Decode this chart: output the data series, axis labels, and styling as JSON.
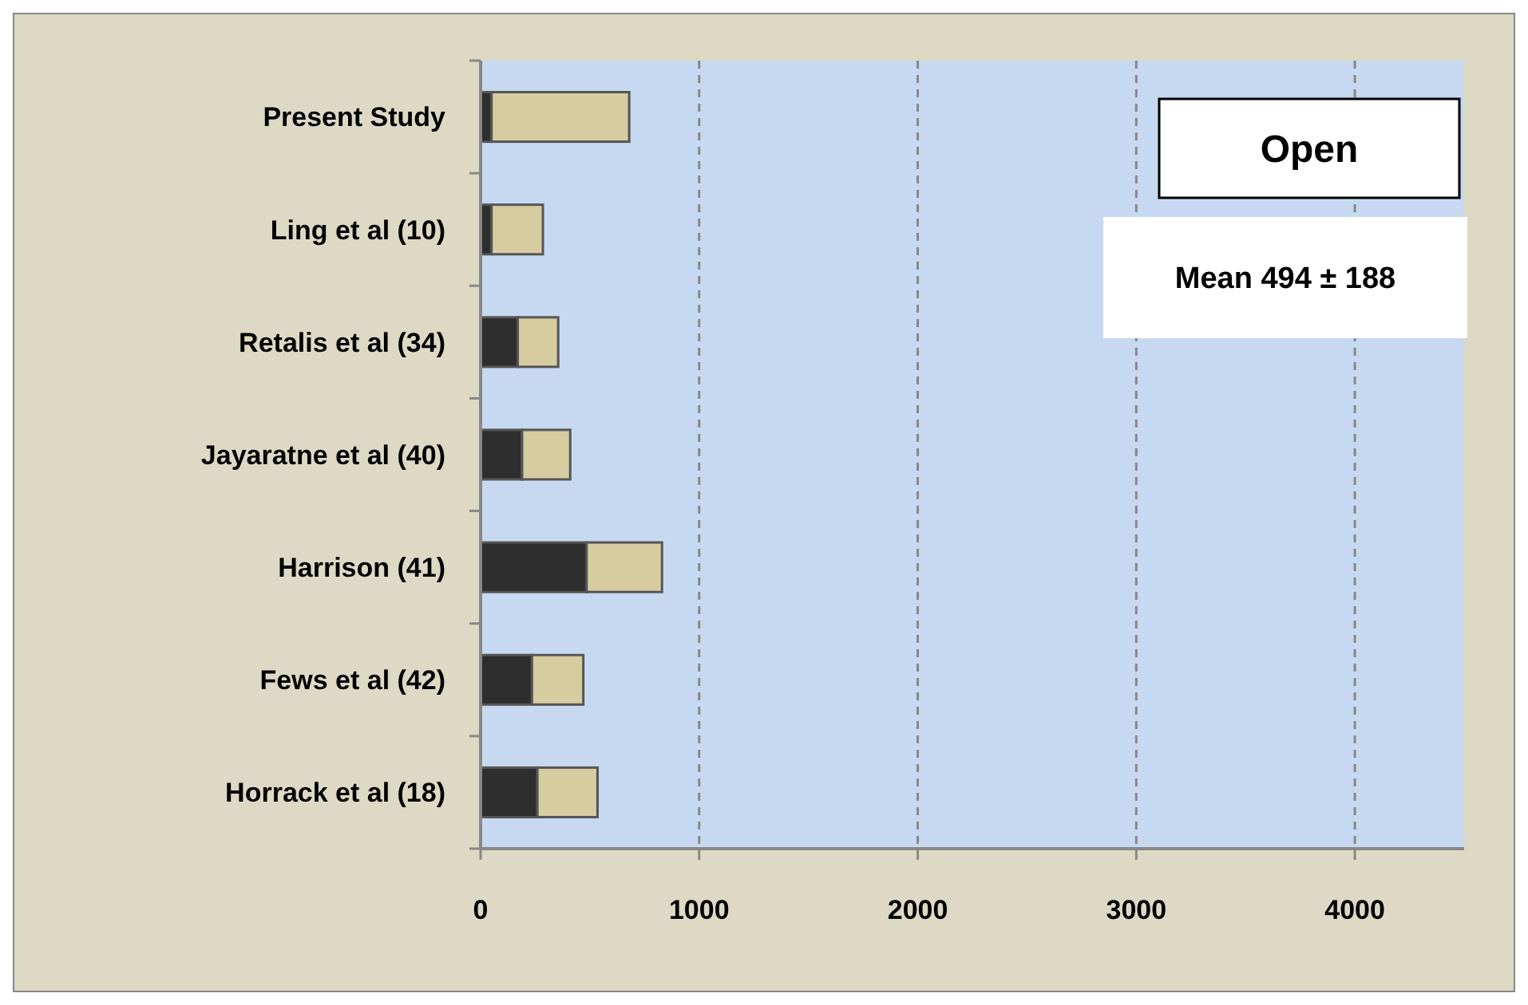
{
  "chart_data": {
    "type": "bar",
    "orientation": "horizontal",
    "stacked": true,
    "categories": [
      "Present Study",
      "Ling et al (10)",
      "Retalis et al (34)",
      "Jayaratne et al (40)",
      "Harrison (41)",
      "Fews et al (42)",
      "Horrack et al (18)"
    ],
    "series": [
      {
        "color": "#2e2e2e",
        "values": [
          50,
          50,
          170,
          190,
          485,
          235,
          260
        ]
      },
      {
        "color": "#d6cca0",
        "values": [
          630,
          235,
          185,
          220,
          345,
          235,
          275
        ]
      }
    ],
    "xlim": [
      0,
      4500
    ],
    "xticks": [
      0,
      1000,
      2000,
      3000,
      4000
    ],
    "grid": "x",
    "line_style": "dashed",
    "annotations": [
      "Open",
      "Mean 494 ± 188"
    ]
  }
}
